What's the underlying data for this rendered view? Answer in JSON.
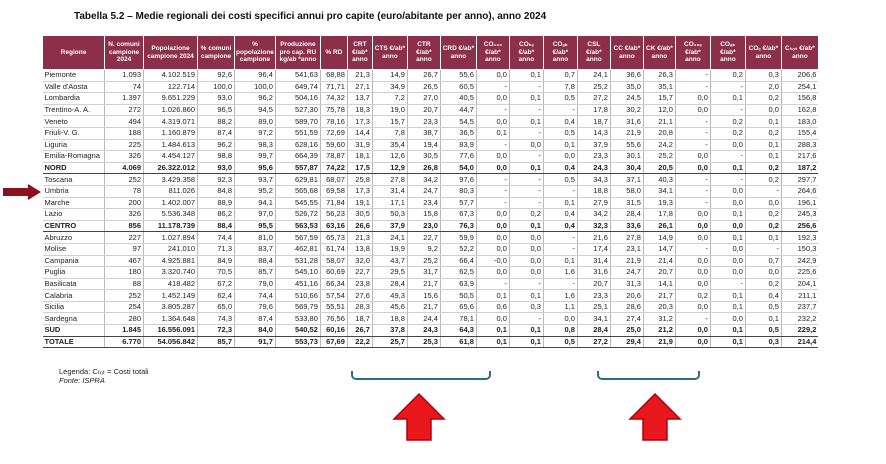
{
  "title": "Tabella 5.2 – Medie regionali dei costi specifici annui pro capite (euro/abitante per anno), anno 2024",
  "headers": [
    "Regione",
    "N. comuni campione 2024",
    "Popolazione campione 2024",
    "% comuni campione",
    "% popolazione campione",
    "Produzione pro cap. RU kg/ab *anno",
    "% RD",
    "CRT €/ab* anno",
    "CTS €/ab* anno",
    "CTR €/ab* anno",
    "CRD €/ab* anno",
    "CO₁₀₀ €/ab* anno",
    "COₜₑ €/ab* anno",
    "COₐₖ €/ab* anno",
    "CSL €/ab* anno",
    "CC €/ab* anno",
    "CK €/ab* anno",
    "CO₁₀ₑ €/ab* anno",
    "COₐₖ €/ab* anno",
    "COₑ €/ab* anno",
    "Cₜₒₜ €/ab* anno"
  ],
  "rows": [
    [
      "Piemonte",
      "1.093",
      "4.102.519",
      "92,6",
      "96,4",
      "541,63",
      "68,88",
      "21,3",
      "14,9",
      "26,7",
      "55,6",
      "0,0",
      "0,1",
      "0,7",
      "24,1",
      "36,6",
      "26,3",
      "-",
      "0,2",
      "0,3",
      "206,6"
    ],
    [
      "Valle d'Aosta",
      "74",
      "122.714",
      "100,0",
      "100,0",
      "649,74",
      "71,71",
      "27,1",
      "34,9",
      "26,5",
      "60,5",
      "-",
      "-",
      "7,8",
      "25,2",
      "35,0",
      "35,1",
      "-",
      "-",
      "2,0",
      "254,1"
    ],
    [
      "Lombardia",
      "1.397",
      "9.651.229",
      "93,0",
      "96,2",
      "504,16",
      "74,32",
      "13,7",
      "7,2",
      "27,0",
      "40,5",
      "0,0",
      "0,1",
      "0,5",
      "27,2",
      "24,5",
      "15,7",
      "0,0",
      "0,1",
      "0,2",
      "156,8"
    ],
    [
      "Trentino-A. A.",
      "272",
      "1.026.860",
      "96,5",
      "94,5",
      "527,30",
      "75,78",
      "18,3",
      "19,0",
      "20,7",
      "44,7",
      "-",
      "-",
      "-",
      "17,8",
      "30,2",
      "12,0",
      "0,0",
      "-",
      "0,0",
      "162,8"
    ],
    [
      "Veneto",
      "494",
      "4.319.071",
      "88,2",
      "89,0",
      "589,70",
      "78,16",
      "17,3",
      "15,7",
      "23,3",
      "54,5",
      "0,0",
      "0,1",
      "0,4",
      "18,7",
      "31,6",
      "21,1",
      "-",
      "0,2",
      "0,1",
      "183,0"
    ],
    [
      "Friuli-V. G.",
      "188",
      "1.160.879",
      "87,4",
      "97,2",
      "551,59",
      "72,69",
      "14,4",
      "7,8",
      "38,7",
      "36,5",
      "0,1",
      "-",
      "0,5",
      "14,3",
      "21,9",
      "20,8",
      "-",
      "0,2",
      "0,2",
      "155,4"
    ],
    [
      "Liguria",
      "225",
      "1.484.613",
      "96,2",
      "98,3",
      "628,16",
      "59,60",
      "31,9",
      "35,4",
      "19,4",
      "83,9",
      "-",
      "0,0",
      "0,1",
      "37,9",
      "55,6",
      "24,2",
      "-",
      "0,0",
      "0,1",
      "288,3"
    ],
    [
      "Emilia-Romagna",
      "326",
      "4.454.127",
      "98,8",
      "99,7",
      "664,39",
      "78,87",
      "18,1",
      "12,6",
      "30,5",
      "77,6",
      "0,0",
      "-",
      "0,0",
      "23,3",
      "30,1",
      "25,2",
      "0,0",
      "-",
      "0,1",
      "217,6"
    ],
    [
      "NORD",
      "4.069",
      "26.322.012",
      "93,0",
      "95,6",
      "557,87",
      "74,22",
      "17,5",
      "12,9",
      "26,8",
      "54,0",
      "0,0",
      "0,1",
      "0,4",
      "24,3",
      "30,4",
      "20,5",
      "0,0",
      "0,1",
      "0,2",
      "187,2"
    ],
    [
      "Toscana",
      "252",
      "3.429.358",
      "92,3",
      "93,7",
      "629,81",
      "68,07",
      "25,8",
      "27,8",
      "34,2",
      "97,6",
      "-",
      "-",
      "0,5",
      "34,3",
      "37,1",
      "40,3",
      "-",
      "-",
      "0,2",
      "297,7"
    ],
    [
      "Umbria",
      "78",
      "811.026",
      "84,8",
      "95,2",
      "565,68",
      "69,58",
      "17,3",
      "31,4",
      "24,7",
      "80,3",
      "-",
      "-",
      "-",
      "18,8",
      "58,0",
      "34,1",
      "-",
      "0,0",
      "-",
      "264,6"
    ],
    [
      "Marche",
      "200",
      "1.402.007",
      "88,9",
      "94,1",
      "545,55",
      "71,84",
      "19,1",
      "17,1",
      "23,4",
      "57,7",
      "-",
      "-",
      "0,1",
      "27,9",
      "31,5",
      "19,3",
      "-",
      "0,0",
      "0,0",
      "196,1"
    ],
    [
      "Lazio",
      "326",
      "5.536.348",
      "86,2",
      "97,0",
      "526,72",
      "56,23",
      "30,5",
      "50,3",
      "15,8",
      "67,3",
      "0,0",
      "0,2",
      "0,4",
      "34,2",
      "28,4",
      "17,8",
      "0,0",
      "0,1",
      "0,2",
      "245,3"
    ],
    [
      "CENTRO",
      "856",
      "11.178.739",
      "88,4",
      "95,5",
      "563,53",
      "63,16",
      "26,6",
      "37,9",
      "23,0",
      "76,3",
      "0,0",
      "0,1",
      "0,4",
      "32,3",
      "33,6",
      "26,1",
      "0,0",
      "0,0",
      "0,2",
      "256,6"
    ],
    [
      "Abruzzo",
      "227",
      "1.027.894",
      "74,4",
      "81,0",
      "567,59",
      "65,73",
      "21,3",
      "24,1",
      "22,7",
      "59,9",
      "0,0",
      "0,0",
      "-",
      "21,6",
      "27,8",
      "14,9",
      "0,0",
      "0,1",
      "0,1",
      "192,3"
    ],
    [
      "Molise",
      "97",
      "241.010",
      "71,3",
      "83,7",
      "462,81",
      "61,74",
      "13,8",
      "19,9",
      "9,2",
      "52,2",
      "0,0",
      "0,0",
      "-",
      "17,4",
      "23,1",
      "14,7",
      "-",
      "0,0",
      "-",
      "150,3"
    ],
    [
      "Campania",
      "467",
      "4.925.881",
      "84,9",
      "88,4",
      "531,28",
      "58,07",
      "32,0",
      "43,7",
      "25,2",
      "66,4",
      "-0,0",
      "0,0",
      "0,1",
      "31,4",
      "21,9",
      "21,4",
      "0,0",
      "0,0",
      "0,7",
      "242,9"
    ],
    [
      "Puglia",
      "180",
      "3.320.740",
      "70,5",
      "85,7",
      "545,10",
      "60,69",
      "22,7",
      "29,5",
      "31,7",
      "62,5",
      "0,0",
      "0,0",
      "1,6",
      "31,6",
      "24,7",
      "20,7",
      "0,0",
      "0,0",
      "0,0",
      "225,6"
    ],
    [
      "Basilicata",
      "88",
      "418.482",
      "67,2",
      "79,0",
      "451,16",
      "66,34",
      "23,8",
      "28,4",
      "21,7",
      "63,9",
      "-",
      "-",
      "-",
      "20,7",
      "31,3",
      "14,1",
      "0,0",
      "-",
      "0,2",
      "204,1"
    ],
    [
      "Calabria",
      "252",
      "1.452.149",
      "62,4",
      "74,4",
      "510,66",
      "57,54",
      "27,6",
      "49,3",
      "15,6",
      "50,5",
      "0,1",
      "0,1",
      "1,6",
      "23,3",
      "20,6",
      "21,7",
      "0,2",
      "0,1",
      "0,4",
      "211,1"
    ],
    [
      "Sicilia",
      "254",
      "3.805.287",
      "65,0",
      "79,6",
      "569,79",
      "55,51",
      "28,3",
      "45,6",
      "21,7",
      "65,6",
      "0,6",
      "0,3",
      "1,1",
      "25,1",
      "28,6",
      "20,3",
      "0,0",
      "0,1",
      "0,5",
      "237,7"
    ],
    [
      "Sardegna",
      "280",
      "1.364.648",
      "74,3",
      "87,4",
      "533,80",
      "76,56",
      "18,7",
      "18,8",
      "24,4",
      "78,1",
      "0,0",
      "-",
      "0,0",
      "34,1",
      "27,4",
      "31,2",
      "-",
      "0,0",
      "0,1",
      "232,2"
    ],
    [
      "SUD",
      "1.845",
      "16.556.091",
      "72,3",
      "84,0",
      "540,52",
      "60,16",
      "26,7",
      "37,8",
      "24,3",
      "64,3",
      "0,1",
      "0,1",
      "0,8",
      "28,4",
      "25,0",
      "21,2",
      "0,0",
      "0,1",
      "0,5",
      "229,2"
    ],
    [
      "TOTALE",
      "6.770",
      "54.056.842",
      "85,7",
      "91,7",
      "553,73",
      "67,69",
      "22,2",
      "25,7",
      "25,3",
      "61,8",
      "0,1",
      "0,1",
      "0,5",
      "27,2",
      "29,4",
      "21,9",
      "0,0",
      "0,1",
      "0,3",
      "214,4"
    ]
  ],
  "bold_rows": [
    "NORD",
    "CENTRO",
    "SUD",
    "TOTALE"
  ],
  "legend": "Legenda: Cₜₒₜ = Costi totali",
  "source": "Fonte: ISPRA",
  "colors": {
    "header_bg": "#8b2f4b",
    "arrow_red": "#e8171b",
    "bracket_teal": "#2a6f80",
    "side_arrow": "#8b1020"
  }
}
